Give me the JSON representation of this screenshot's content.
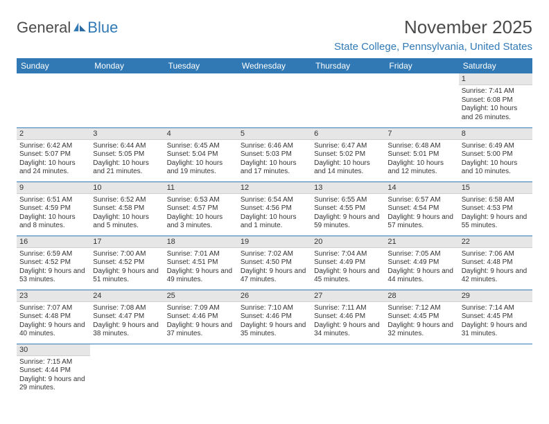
{
  "logo": {
    "text1": "General",
    "text2": "Blue"
  },
  "title": "November 2025",
  "subtitle": "State College, Pennsylvania, United States",
  "colors": {
    "accent": "#3179b5",
    "daynum_bg": "#e6e6e6",
    "text": "#333333",
    "header_text": "#4a4a4a"
  },
  "day_names": [
    "Sunday",
    "Monday",
    "Tuesday",
    "Wednesday",
    "Thursday",
    "Friday",
    "Saturday"
  ],
  "weeks": [
    [
      null,
      null,
      null,
      null,
      null,
      null,
      {
        "n": "1",
        "sr": "Sunrise: 7:41 AM",
        "ss": "Sunset: 6:08 PM",
        "dl": "Daylight: 10 hours and 26 minutes."
      }
    ],
    [
      {
        "n": "2",
        "sr": "Sunrise: 6:42 AM",
        "ss": "Sunset: 5:07 PM",
        "dl": "Daylight: 10 hours and 24 minutes."
      },
      {
        "n": "3",
        "sr": "Sunrise: 6:44 AM",
        "ss": "Sunset: 5:05 PM",
        "dl": "Daylight: 10 hours and 21 minutes."
      },
      {
        "n": "4",
        "sr": "Sunrise: 6:45 AM",
        "ss": "Sunset: 5:04 PM",
        "dl": "Daylight: 10 hours and 19 minutes."
      },
      {
        "n": "5",
        "sr": "Sunrise: 6:46 AM",
        "ss": "Sunset: 5:03 PM",
        "dl": "Daylight: 10 hours and 17 minutes."
      },
      {
        "n": "6",
        "sr": "Sunrise: 6:47 AM",
        "ss": "Sunset: 5:02 PM",
        "dl": "Daylight: 10 hours and 14 minutes."
      },
      {
        "n": "7",
        "sr": "Sunrise: 6:48 AM",
        "ss": "Sunset: 5:01 PM",
        "dl": "Daylight: 10 hours and 12 minutes."
      },
      {
        "n": "8",
        "sr": "Sunrise: 6:49 AM",
        "ss": "Sunset: 5:00 PM",
        "dl": "Daylight: 10 hours and 10 minutes."
      }
    ],
    [
      {
        "n": "9",
        "sr": "Sunrise: 6:51 AM",
        "ss": "Sunset: 4:59 PM",
        "dl": "Daylight: 10 hours and 8 minutes."
      },
      {
        "n": "10",
        "sr": "Sunrise: 6:52 AM",
        "ss": "Sunset: 4:58 PM",
        "dl": "Daylight: 10 hours and 5 minutes."
      },
      {
        "n": "11",
        "sr": "Sunrise: 6:53 AM",
        "ss": "Sunset: 4:57 PM",
        "dl": "Daylight: 10 hours and 3 minutes."
      },
      {
        "n": "12",
        "sr": "Sunrise: 6:54 AM",
        "ss": "Sunset: 4:56 PM",
        "dl": "Daylight: 10 hours and 1 minute."
      },
      {
        "n": "13",
        "sr": "Sunrise: 6:55 AM",
        "ss": "Sunset: 4:55 PM",
        "dl": "Daylight: 9 hours and 59 minutes."
      },
      {
        "n": "14",
        "sr": "Sunrise: 6:57 AM",
        "ss": "Sunset: 4:54 PM",
        "dl": "Daylight: 9 hours and 57 minutes."
      },
      {
        "n": "15",
        "sr": "Sunrise: 6:58 AM",
        "ss": "Sunset: 4:53 PM",
        "dl": "Daylight: 9 hours and 55 minutes."
      }
    ],
    [
      {
        "n": "16",
        "sr": "Sunrise: 6:59 AM",
        "ss": "Sunset: 4:52 PM",
        "dl": "Daylight: 9 hours and 53 minutes."
      },
      {
        "n": "17",
        "sr": "Sunrise: 7:00 AM",
        "ss": "Sunset: 4:52 PM",
        "dl": "Daylight: 9 hours and 51 minutes."
      },
      {
        "n": "18",
        "sr": "Sunrise: 7:01 AM",
        "ss": "Sunset: 4:51 PM",
        "dl": "Daylight: 9 hours and 49 minutes."
      },
      {
        "n": "19",
        "sr": "Sunrise: 7:02 AM",
        "ss": "Sunset: 4:50 PM",
        "dl": "Daylight: 9 hours and 47 minutes."
      },
      {
        "n": "20",
        "sr": "Sunrise: 7:04 AM",
        "ss": "Sunset: 4:49 PM",
        "dl": "Daylight: 9 hours and 45 minutes."
      },
      {
        "n": "21",
        "sr": "Sunrise: 7:05 AM",
        "ss": "Sunset: 4:49 PM",
        "dl": "Daylight: 9 hours and 44 minutes."
      },
      {
        "n": "22",
        "sr": "Sunrise: 7:06 AM",
        "ss": "Sunset: 4:48 PM",
        "dl": "Daylight: 9 hours and 42 minutes."
      }
    ],
    [
      {
        "n": "23",
        "sr": "Sunrise: 7:07 AM",
        "ss": "Sunset: 4:48 PM",
        "dl": "Daylight: 9 hours and 40 minutes."
      },
      {
        "n": "24",
        "sr": "Sunrise: 7:08 AM",
        "ss": "Sunset: 4:47 PM",
        "dl": "Daylight: 9 hours and 38 minutes."
      },
      {
        "n": "25",
        "sr": "Sunrise: 7:09 AM",
        "ss": "Sunset: 4:46 PM",
        "dl": "Daylight: 9 hours and 37 minutes."
      },
      {
        "n": "26",
        "sr": "Sunrise: 7:10 AM",
        "ss": "Sunset: 4:46 PM",
        "dl": "Daylight: 9 hours and 35 minutes."
      },
      {
        "n": "27",
        "sr": "Sunrise: 7:11 AM",
        "ss": "Sunset: 4:46 PM",
        "dl": "Daylight: 9 hours and 34 minutes."
      },
      {
        "n": "28",
        "sr": "Sunrise: 7:12 AM",
        "ss": "Sunset: 4:45 PM",
        "dl": "Daylight: 9 hours and 32 minutes."
      },
      {
        "n": "29",
        "sr": "Sunrise: 7:14 AM",
        "ss": "Sunset: 4:45 PM",
        "dl": "Daylight: 9 hours and 31 minutes."
      }
    ],
    [
      {
        "n": "30",
        "sr": "Sunrise: 7:15 AM",
        "ss": "Sunset: 4:44 PM",
        "dl": "Daylight: 9 hours and 29 minutes."
      },
      null,
      null,
      null,
      null,
      null,
      null
    ]
  ]
}
